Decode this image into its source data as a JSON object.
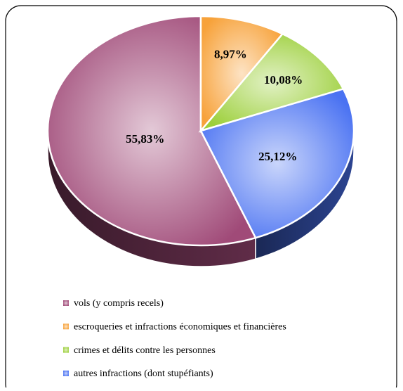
{
  "chart_data": {
    "type": "pie",
    "categories": [
      "vols (y compris recels)",
      "escroqueries et infractions économiques et financières",
      "crimes et délits contre les personnes",
      "autres infractions (dont stupéfiants)"
    ],
    "values": [
      55.83,
      8.97,
      10.08,
      25.12
    ],
    "value_labels": [
      "55,83%",
      "8,97%",
      "10,08%",
      "25,12%"
    ],
    "colors": [
      "#a04a78",
      "#f7a23a",
      "#9ccf3a",
      "#4a72f2"
    ],
    "legend": "bottom"
  }
}
